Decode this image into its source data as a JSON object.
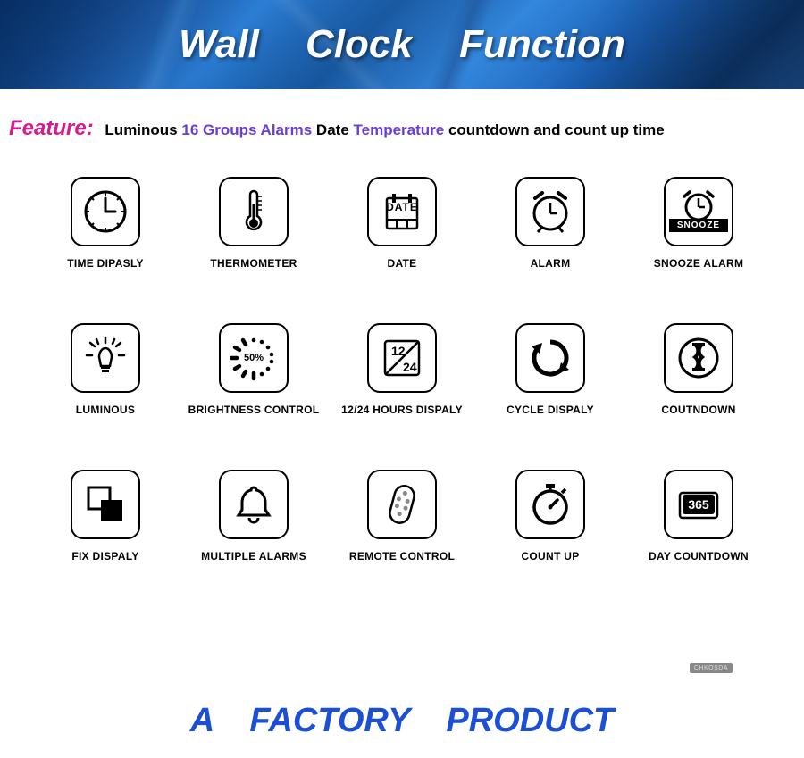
{
  "banner": {
    "title": "Wall  Clock  Function"
  },
  "feature": {
    "label": "Feature:",
    "parts": [
      {
        "text": "Luminous",
        "cls": "f-black"
      },
      {
        "text": "16  Groups  Alarms",
        "cls": "f-purple"
      },
      {
        "text": "Date",
        "cls": "f-black"
      },
      {
        "text": "Temperature",
        "cls": "f-purple"
      },
      {
        "text": "countdown and count  up  time",
        "cls": "f-black"
      }
    ]
  },
  "icons": {
    "time": "TIME DIPASLY",
    "thermo": "THERMOMETER",
    "date": "DATE",
    "date_inner": "DATE",
    "alarm": "ALARM",
    "snooze": "SNOOZE ALARM",
    "snooze_band": "SNOOZE",
    "luminous": "LUMINOUS",
    "brightness": "BRIGHTNESS CONTROL",
    "brightness_pct": "50%",
    "hours": "12/24 HOURS DISPALY",
    "cycle": "CYCLE DISPALY",
    "countdown": "COUTNDOWN",
    "fix": "FIX DISPALY",
    "multiple": "MULTIPLE ALARMS",
    "remote": "REMOTE CONTROL",
    "countup": "COUNT UP",
    "day365": "DAY COUNTDOWN",
    "day365_num": "365"
  },
  "footer": "A  FACTORY  PRODUCT",
  "watermark": "CHKOSDA",
  "colors": {
    "magenta": "#d81b8c",
    "purple": "#6a3dd4",
    "footer_blue": "#1a4fd6"
  }
}
